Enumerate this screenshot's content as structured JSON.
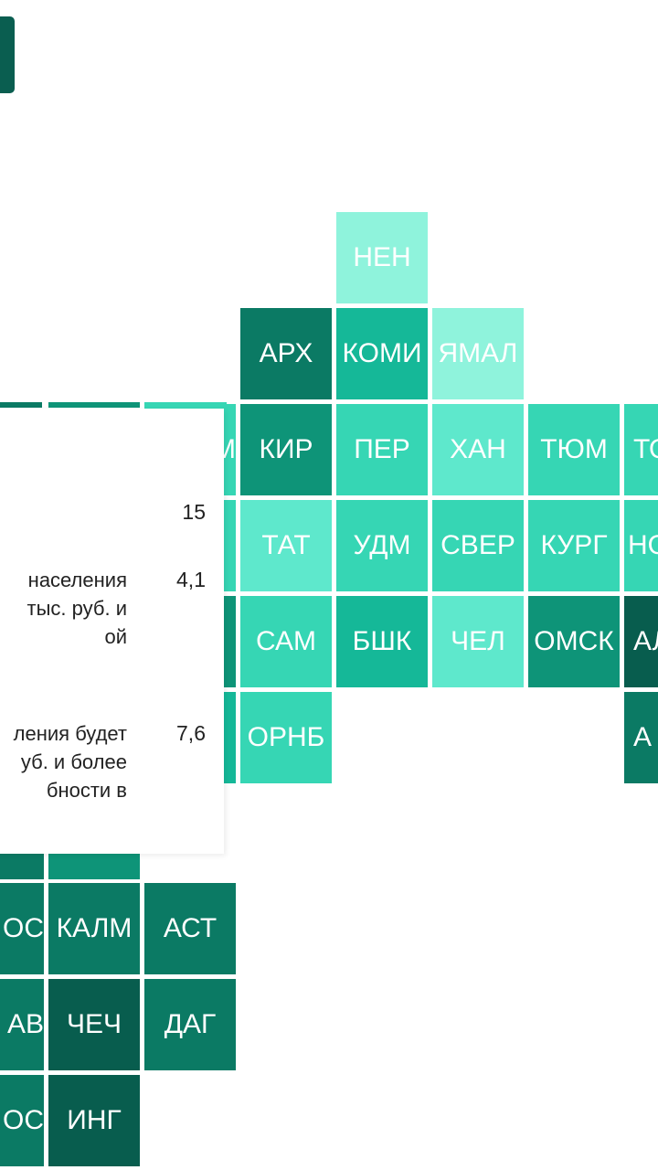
{
  "regions": {
    "nen": "НЕН",
    "arh": "АРХ",
    "komi": "КОМИ",
    "yamal": "ЯМАЛ",
    "m_cut": "М",
    "kir": "КИР",
    "per": "ПЕР",
    "han": "ХАН",
    "tum": "ТЮМ",
    "to_cut": "ТО",
    "tat": "ТАТ",
    "udm": "УДМ",
    "sver": "СВЕР",
    "kurg": "КУРГ",
    "no_cut": "НО",
    "sam": "САМ",
    "bshk": "БШК",
    "chel": "ЧЕЛ",
    "omsk": "ОМСК",
    "al_cut": "АЛ",
    "ornb": "ОРНБ",
    "a_cut": "А",
    "os_cut": "ОС",
    "kalm": "КАЛМ",
    "ast": "АСТ",
    "av_cut": "АВ",
    "chech": "ЧЕЧ",
    "dag": "ДАГ",
    "os2_cut": "ОС",
    "ing": "ИНГ"
  },
  "popup": {
    "rows": [
      {
        "text": "",
        "value": "15"
      },
      {
        "text": "населения\nтыс. руб. и\nой",
        "value": "4,1"
      },
      {
        "text": "ления будет\nуб. и более\nбности в",
        "value": "7,6"
      }
    ]
  },
  "colors": {
    "level_1": "#8ff3dc",
    "level_2": "#5ee8cc",
    "level_3": "#36d6b4",
    "level_4": "#15b898",
    "level_5": "#0e9478",
    "level_6": "#0b7a64",
    "level_7": "#085d4e"
  }
}
